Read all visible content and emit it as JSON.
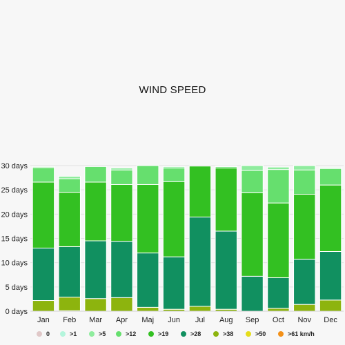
{
  "chart_data": {
    "type": "bar",
    "stacked": true,
    "title": "WIND SPEED",
    "xlabel": "",
    "ylabel": "",
    "ylim": [
      0,
      30
    ],
    "yticks": [
      0,
      5,
      10,
      15,
      20,
      25,
      30
    ],
    "ytick_suffix": " days",
    "grid": true,
    "legend_position": "bottom",
    "categories": [
      "Jan",
      "Feb",
      "Mar",
      "Apr",
      "Maj",
      "Jun",
      "Jul",
      "Aug",
      "Sep",
      "Oct",
      "Nov",
      "Dec"
    ],
    "series": [
      {
        "name": "0",
        "color": "#e0c8c8",
        "values": [
          0,
          0,
          0,
          0,
          0,
          0,
          0,
          0,
          0,
          0,
          0,
          0
        ]
      },
      {
        "name": ">1",
        "color": "#b4f5dc",
        "values": [
          0,
          0,
          0,
          0,
          0,
          0,
          0,
          0,
          0,
          0,
          0,
          0
        ]
      },
      {
        "name": ">5",
        "color": "#8fec9e",
        "values": [
          0.2,
          0.5,
          0,
          0.4,
          0,
          0.3,
          0,
          0.1,
          1.0,
          0.5,
          0.9,
          0.2
        ]
      },
      {
        "name": ">12",
        "color": "#66df6e",
        "values": [
          3.0,
          2.8,
          3.2,
          3.0,
          3.9,
          2.8,
          0,
          0.3,
          4.6,
          6.9,
          5.0,
          3.4
        ]
      },
      {
        "name": ">19",
        "color": "#33c022",
        "values": [
          13.6,
          11.2,
          12.1,
          11.7,
          14.1,
          15.5,
          10.5,
          13.0,
          17.2,
          15.4,
          13.4,
          13.7
        ]
      },
      {
        "name": ">28",
        "color": "#119060",
        "values": [
          10.8,
          10.4,
          11.9,
          11.6,
          11.2,
          10.8,
          18.4,
          16.1,
          7.2,
          6.3,
          9.3,
          10.0
        ]
      },
      {
        "name": ">38",
        "color": "#8db40e",
        "values": [
          2.2,
          2.8,
          2.6,
          2.8,
          0.8,
          0.4,
          1.0,
          0.4,
          0,
          0.6,
          1.4,
          2.3
        ]
      },
      {
        "name": ">50",
        "color": "#e5dd1a",
        "values": [
          0,
          0.1,
          0,
          0,
          0,
          0,
          0,
          0,
          0,
          0,
          0,
          0
        ]
      },
      {
        "name": ">61 km/h",
        "color": "#f39018",
        "values": [
          0,
          0,
          0,
          0,
          0,
          0,
          0,
          0,
          0,
          0,
          0,
          0
        ]
      }
    ]
  }
}
